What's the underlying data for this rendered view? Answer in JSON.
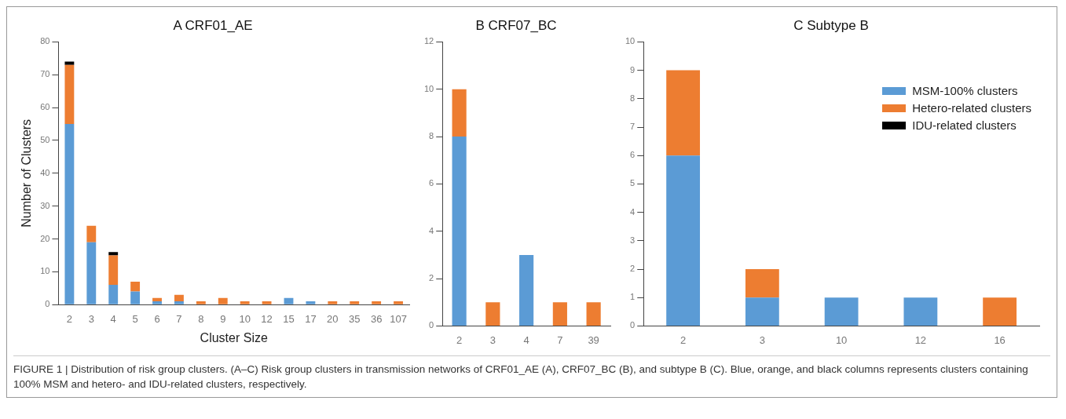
{
  "chart_data": [
    {
      "type": "bar",
      "title": "A CRF01_AE",
      "xlabel": "Cluster Size",
      "ylabel": "Number of Clusters",
      "stacked": true,
      "legend": false,
      "grid": false,
      "categories": [
        "2",
        "3",
        "4",
        "5",
        "6",
        "7",
        "8",
        "9",
        "10",
        "12",
        "15",
        "17",
        "20",
        "35",
        "36",
        "107"
      ],
      "ylim": [
        0,
        80
      ],
      "yticks": [
        0,
        10,
        20,
        30,
        40,
        50,
        60,
        70,
        80
      ],
      "series": [
        {
          "color": "#5b9bd5",
          "values": [
            55,
            19,
            6,
            4,
            1,
            1,
            0,
            0,
            0,
            0,
            2,
            1,
            0,
            0,
            0,
            0
          ]
        },
        {
          "color": "#ed7d31",
          "values": [
            18,
            5,
            9,
            3,
            1,
            2,
            1,
            2,
            1,
            1,
            0,
            0,
            1,
            1,
            1,
            1
          ]
        },
        {
          "color": "#000000",
          "values": [
            1,
            0,
            1,
            0,
            0,
            0,
            0,
            0,
            0,
            0,
            0,
            0,
            0,
            0,
            0,
            0
          ]
        }
      ],
      "annotations": [
        "FIGURE 1 | Distribution of risk group clusters. (A–C) Risk group clusters in transmission networks of CRF01_AE (A), CRF07_BC (B), and subtype B (C). Blue, orange, and black columns represents clusters containing 100% MSM and hetero- and IDU-related clusters, respectively."
      ]
    },
    {
      "type": "bar",
      "title": "B CRF07_BC",
      "stacked": true,
      "legend": false,
      "grid": false,
      "categories": [
        "2",
        "3",
        "4",
        "7",
        "39"
      ],
      "ylim": [
        0,
        12
      ],
      "yticks": [
        0,
        2,
        4,
        6,
        8,
        10,
        12
      ],
      "series": [
        {
          "color": "#5b9bd5",
          "values": [
            8,
            0,
            3,
            0,
            0
          ]
        },
        {
          "color": "#ed7d31",
          "values": [
            2,
            1,
            0,
            1,
            1
          ]
        }
      ]
    },
    {
      "type": "bar",
      "title": "C Subtype B",
      "stacked": true,
      "legend": "top right",
      "grid": false,
      "categories": [
        "2",
        "3",
        "10",
        "12",
        "16"
      ],
      "ylim": [
        0,
        10
      ],
      "yticks": [
        0,
        1,
        2,
        3,
        4,
        5,
        6,
        7,
        8,
        9,
        10
      ],
      "series": [
        {
          "name": "MSM-100% clusters",
          "color": "#5b9bd5",
          "values": [
            6,
            1,
            1,
            1,
            0
          ]
        },
        {
          "name": "Hetero-related clusters",
          "color": "#ed7d31",
          "values": [
            3,
            1,
            0,
            0,
            1
          ]
        },
        {
          "name": "IDU-related clusters",
          "color": "#000000",
          "values": [
            0,
            0,
            0,
            0,
            0
          ]
        }
      ]
    }
  ]
}
